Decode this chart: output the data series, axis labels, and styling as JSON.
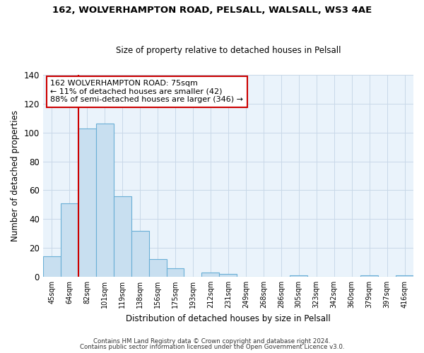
{
  "title": "162, WOLVERHAMPTON ROAD, PELSALL, WALSALL, WS3 4AE",
  "subtitle": "Size of property relative to detached houses in Pelsall",
  "xlabel": "Distribution of detached houses by size in Pelsall",
  "ylabel": "Number of detached properties",
  "bar_labels": [
    "45sqm",
    "64sqm",
    "82sqm",
    "101sqm",
    "119sqm",
    "138sqm",
    "156sqm",
    "175sqm",
    "193sqm",
    "212sqm",
    "231sqm",
    "249sqm",
    "268sqm",
    "286sqm",
    "305sqm",
    "323sqm",
    "342sqm",
    "360sqm",
    "379sqm",
    "397sqm",
    "416sqm"
  ],
  "bar_values": [
    14,
    51,
    103,
    106,
    56,
    32,
    12,
    6,
    0,
    3,
    2,
    0,
    0,
    0,
    1,
    0,
    0,
    0,
    1,
    0,
    1
  ],
  "bar_color": "#c8dff0",
  "bar_edge_color": "#6aafd6",
  "vline_x": 1.5,
  "vline_color": "#cc0000",
  "ylim": [
    0,
    140
  ],
  "yticks": [
    0,
    20,
    40,
    60,
    80,
    100,
    120,
    140
  ],
  "annotation_text": "162 WOLVERHAMPTON ROAD: 75sqm\n← 11% of detached houses are smaller (42)\n88% of semi-detached houses are larger (346) →",
  "annotation_box_edge": "#cc0000",
  "footer_line1": "Contains HM Land Registry data © Crown copyright and database right 2024.",
  "footer_line2": "Contains public sector information licensed under the Open Government Licence v3.0.",
  "background_color": "#ffffff",
  "grid_color": "#c8d8e8",
  "plot_bg_color": "#eaf3fb"
}
